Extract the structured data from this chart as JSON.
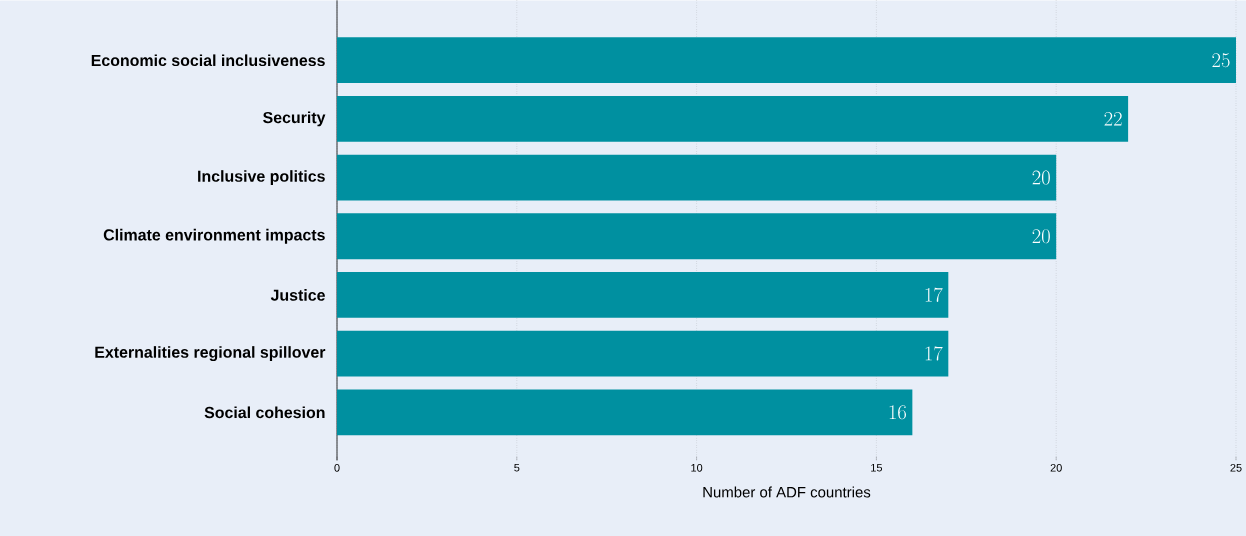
{
  "chart_data": {
    "type": "bar",
    "orientation": "horizontal",
    "xlabel": "Number of ADF countries",
    "categories": [
      "Economic social inclusiveness",
      "Security",
      "Inclusive politics",
      "Climate environment impacts",
      "Justice",
      "Externalities regional spillover",
      "Social cohesion"
    ],
    "values": [
      25,
      22,
      20,
      20,
      17,
      17,
      16
    ],
    "color": "#0090a0",
    "xlim": [
      0,
      25
    ],
    "xticks": [
      0,
      5,
      10,
      15,
      20,
      25
    ],
    "grid": "x",
    "data_labels": true
  }
}
